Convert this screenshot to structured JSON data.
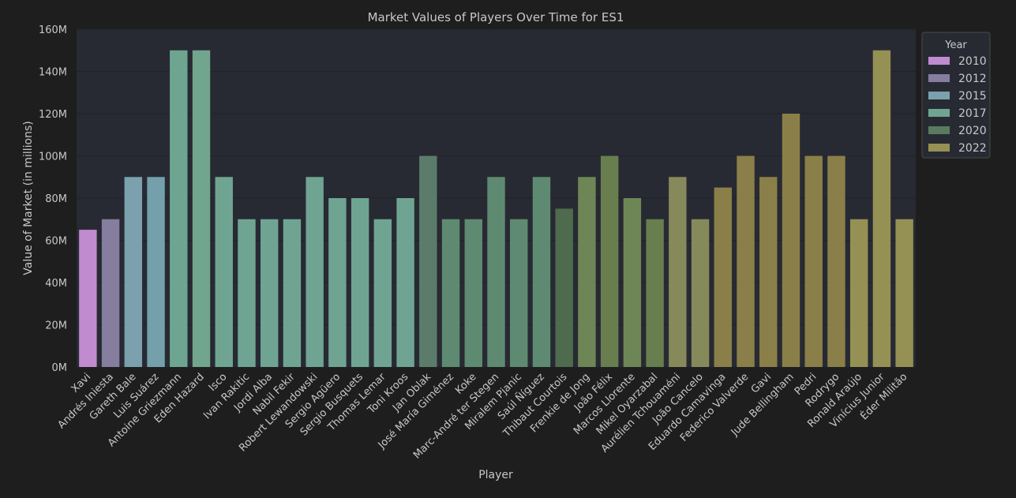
{
  "chart_data": {
    "type": "bar",
    "title": "Market Values of Players Over Time for ES1",
    "xlabel": "Player",
    "ylabel": "Value of Market (in millions)",
    "ylim": [
      0,
      160
    ],
    "yticks": [
      0,
      20,
      40,
      60,
      80,
      100,
      120,
      140,
      160
    ],
    "ytick_labels": [
      "0M",
      "20M",
      "40M",
      "60M",
      "80M",
      "100M",
      "120M",
      "140M",
      "160M"
    ],
    "grid": true,
    "legend": {
      "title": "Year",
      "placement": "upper-right-outside",
      "entries": [
        {
          "label": "2010",
          "color": "#c18bd0"
        },
        {
          "label": "2012",
          "color": "#857e9f"
        },
        {
          "label": "2015",
          "color": "#7aa1ad"
        },
        {
          "label": "2017",
          "color": "#6fa493"
        },
        {
          "label": "2020",
          "color": "#597a5f"
        },
        {
          "label": "2022",
          "color": "#959154"
        }
      ]
    },
    "bars": [
      {
        "player": "Xavi",
        "value": 65,
        "color": "#c18bd0"
      },
      {
        "player": "Andrés Iniesta",
        "value": 70,
        "color": "#857e9f"
      },
      {
        "player": "Gareth Bale",
        "value": 90,
        "color": "#7aa1ad"
      },
      {
        "player": "Luis Suárez",
        "value": 90,
        "color": "#74a0ab"
      },
      {
        "player": "Antoine Griezmann",
        "value": 150,
        "color": "#6ea590"
      },
      {
        "player": "Eden Hazard",
        "value": 150,
        "color": "#72a58e"
      },
      {
        "player": "Isco",
        "value": 90,
        "color": "#6fa493"
      },
      {
        "player": "Ivan Rakitic",
        "value": 70,
        "color": "#6fa493"
      },
      {
        "player": "Jordi Alba",
        "value": 70,
        "color": "#6fa493"
      },
      {
        "player": "Nabil Fekir",
        "value": 70,
        "color": "#6fa493"
      },
      {
        "player": "Robert Lewandowski",
        "value": 90,
        "color": "#6fa493"
      },
      {
        "player": "Sergio Agüero",
        "value": 80,
        "color": "#6fa493"
      },
      {
        "player": "Sergio Busquets",
        "value": 80,
        "color": "#6fa493"
      },
      {
        "player": "Thomas Lemar",
        "value": 70,
        "color": "#6fa493"
      },
      {
        "player": "Toni Kroos",
        "value": 80,
        "color": "#6fa493"
      },
      {
        "player": "Jan Oblak",
        "value": 100,
        "color": "#5c7c6a"
      },
      {
        "player": "José María Giménez",
        "value": 70,
        "color": "#5f8a72"
      },
      {
        "player": "Koke",
        "value": 70,
        "color": "#5f8a72"
      },
      {
        "player": "Marc-André ter Stegen",
        "value": 90,
        "color": "#5f8a72"
      },
      {
        "player": "Miralem Pjanic",
        "value": 70,
        "color": "#5f8a72"
      },
      {
        "player": "Saúl Ñíguez",
        "value": 90,
        "color": "#5f8a72"
      },
      {
        "player": "Thibaut Courtois",
        "value": 75,
        "color": "#4f6b4d"
      },
      {
        "player": "Frenkie de Jong",
        "value": 90,
        "color": "#6e8656"
      },
      {
        "player": "João Félix",
        "value": 100,
        "color": "#687e4f"
      },
      {
        "player": "Marcos Llorente",
        "value": 80,
        "color": "#6e8656"
      },
      {
        "player": "Mikel Oyarzabal",
        "value": 70,
        "color": "#687e4f"
      },
      {
        "player": "Aurélien Tchouaméni",
        "value": 90,
        "color": "#868a5b"
      },
      {
        "player": "João Cancelo",
        "value": 70,
        "color": "#868a5b"
      },
      {
        "player": "Eduardo Camavinga",
        "value": 85,
        "color": "#8a7f48"
      },
      {
        "player": "Federico Valverde",
        "value": 100,
        "color": "#8a7f48"
      },
      {
        "player": "Gavi",
        "value": 90,
        "color": "#8a7f48"
      },
      {
        "player": "Jude Bellingham",
        "value": 120,
        "color": "#8a7f48"
      },
      {
        "player": "Pedri",
        "value": 100,
        "color": "#8a7f48"
      },
      {
        "player": "Rodrygo",
        "value": 100,
        "color": "#8a7f48"
      },
      {
        "player": "Ronald Araújo",
        "value": 70,
        "color": "#959154"
      },
      {
        "player": "Vinícius Junior",
        "value": 150,
        "color": "#959154"
      },
      {
        "player": "Éder Militão",
        "value": 70,
        "color": "#959154"
      }
    ]
  }
}
